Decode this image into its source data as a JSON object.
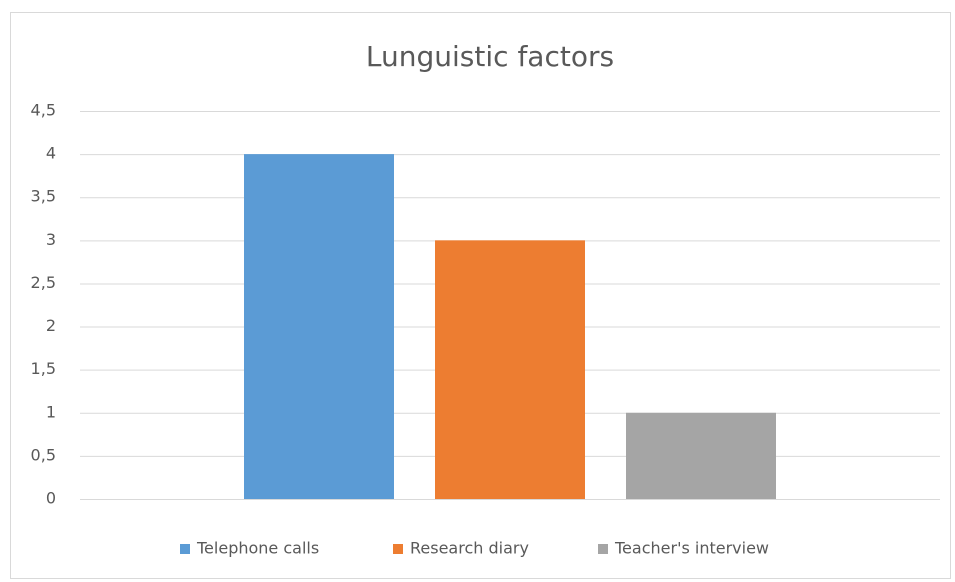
{
  "chart_data": {
    "type": "bar",
    "title": "Lunguistic factors",
    "categories": [
      null
    ],
    "series": [
      {
        "name": "Telephone calls",
        "color": "#5b9bd5",
        "values": [
          4
        ]
      },
      {
        "name": "Research diary",
        "color": "#ed7d31",
        "values": [
          3
        ]
      },
      {
        "name": "Teacher's interview",
        "color": "#a5a5a5",
        "values": [
          1
        ]
      }
    ],
    "ylim": [
      0,
      4.5
    ],
    "yticks": [
      0,
      {
        "value": 0.5,
        "label": "0,5"
      },
      1,
      {
        "value": 1.5,
        "label": "1,5"
      },
      2,
      {
        "value": 2.5,
        "label": "2,5"
      },
      3,
      {
        "value": 3.5,
        "label": "3,5"
      },
      4,
      {
        "value": 4.5,
        "label": "4,5"
      }
    ],
    "grid": true,
    "legend": "bottom"
  }
}
